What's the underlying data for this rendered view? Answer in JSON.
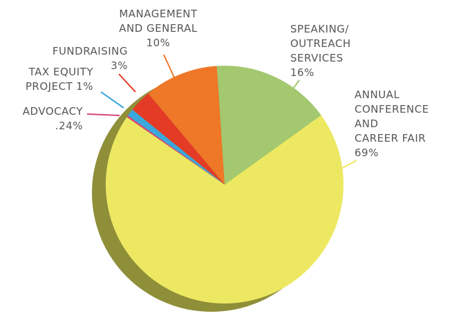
{
  "chart_data": {
    "type": "pie",
    "categories": [
      [
        "ANNUAL",
        "CONFERENCE",
        "AND",
        "CAREER FAIR"
      ],
      [
        "ADVOCACY"
      ],
      [
        "TAX EQUITY",
        "PROJECT"
      ],
      [
        "FUNDRAISING"
      ],
      [
        "MANAGEMENT",
        "AND GENERAL"
      ],
      [
        "SPEAKING/",
        "OUTREACH",
        "SERVICES"
      ]
    ],
    "values": [
      69,
      0.24,
      1,
      3,
      10,
      16
    ],
    "value_labels": [
      "69%",
      ".24%",
      "1%",
      "3%",
      "10%",
      "16%"
    ],
    "colors": [
      "#ede862",
      "#d9457a",
      "#3aa8dc",
      "#e33b25",
      "#ee7728",
      "#a3c870"
    ]
  }
}
